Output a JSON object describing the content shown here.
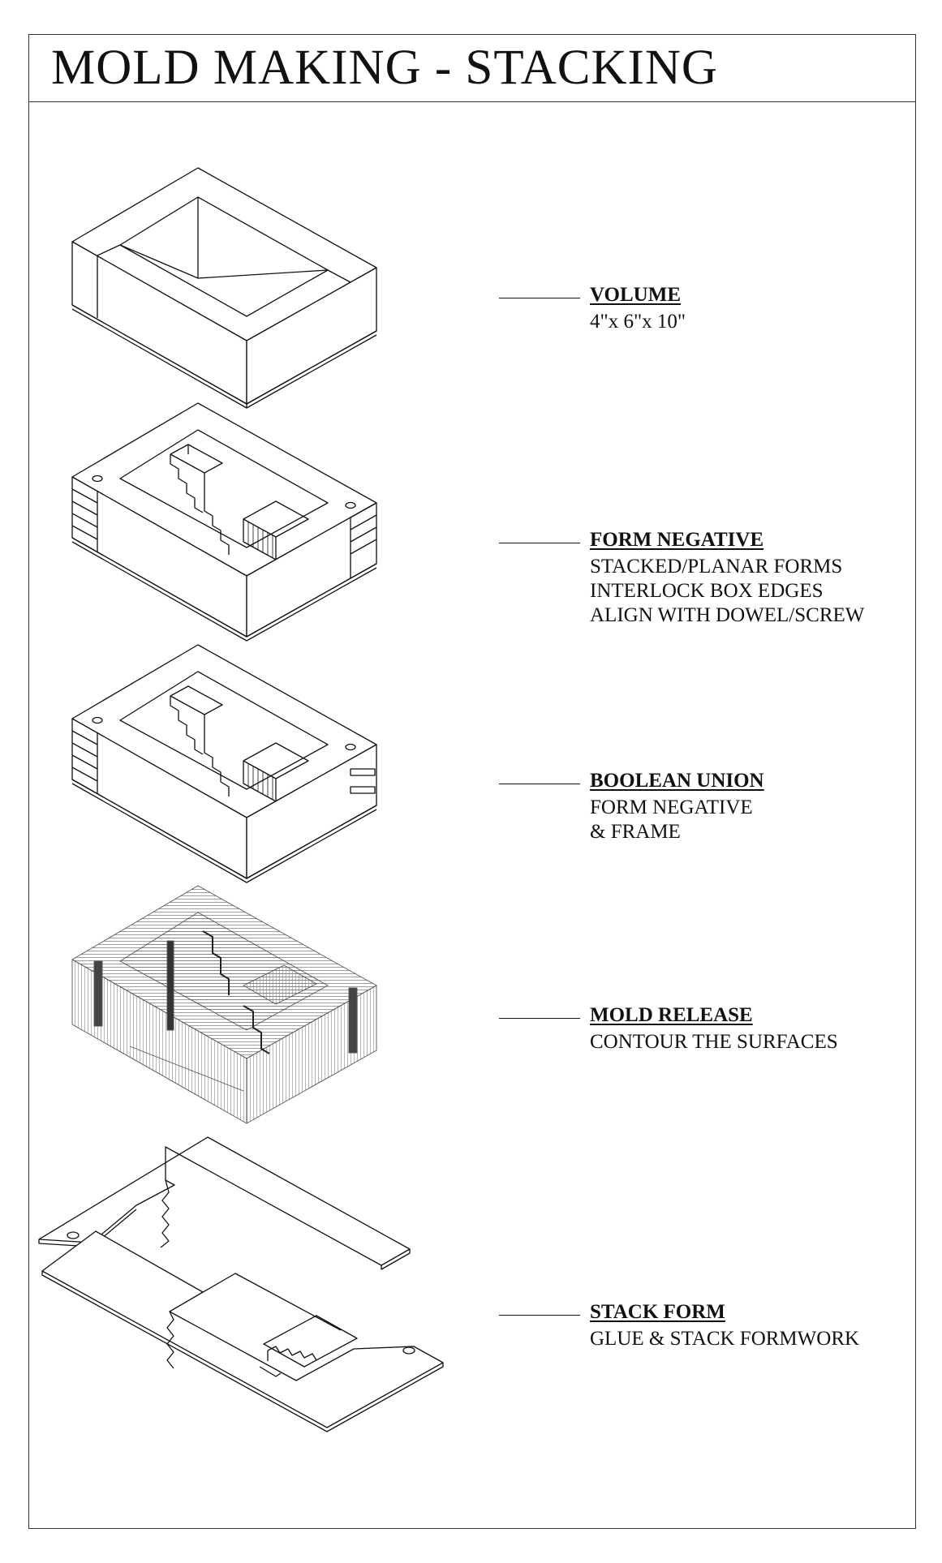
{
  "title": "MOLD MAKING - STACKING",
  "steps": [
    {
      "heading": "VOLUME",
      "lines": [
        "4\"x 6\"x 10\""
      ]
    },
    {
      "heading": "FORM NEGATIVE",
      "lines": [
        "STACKED/PLANAR FORMS",
        "INTERLOCK BOX EDGES",
        "ALIGN WITH DOWEL/SCREW"
      ]
    },
    {
      "heading": "BOOLEAN UNION",
      "lines": [
        "FORM NEGATIVE",
        "& FRAME"
      ]
    },
    {
      "heading": "MOLD RELEASE",
      "lines": [
        "CONTOUR THE SURFACES"
      ]
    },
    {
      "heading": "STACK FORM",
      "lines": [
        "GLUE & STACK FORMWORK"
      ]
    }
  ],
  "colors": {
    "line": "#111111",
    "frame": "#333333",
    "background": "#ffffff"
  }
}
